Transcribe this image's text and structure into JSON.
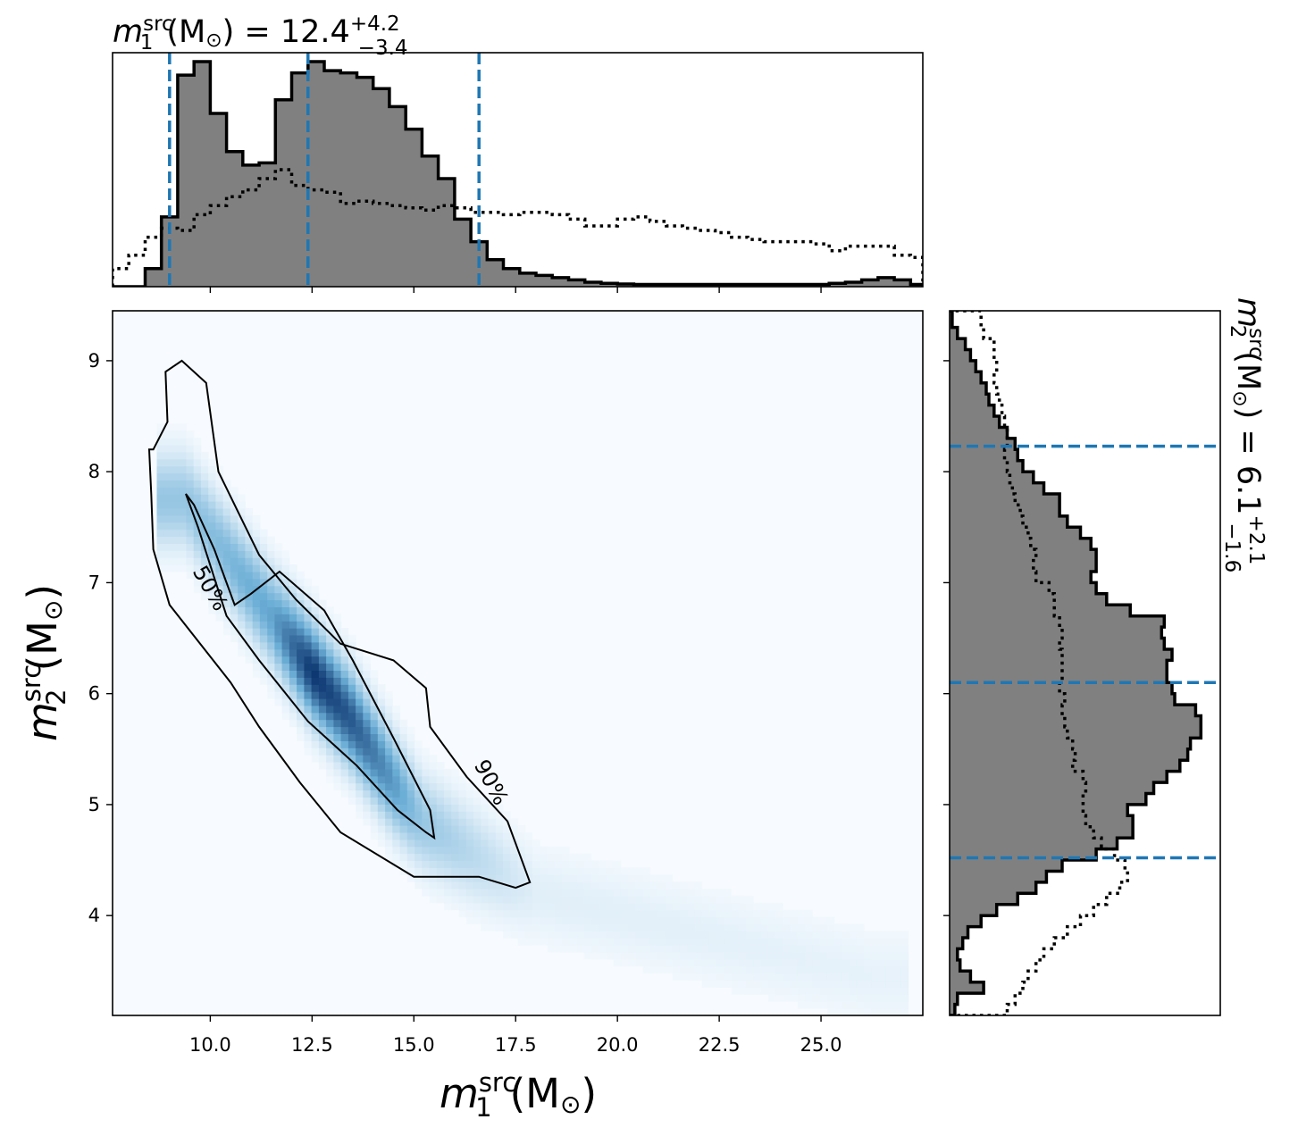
{
  "chart_data": [
    {
      "type": "heatmap",
      "panel": "joint-posterior",
      "xlabel": "m_1^src (M_⊙)",
      "ylabel": "m_2^src (M_⊙)",
      "xlim": [
        7.6,
        27.5
      ],
      "ylim": [
        3.1,
        9.45
      ],
      "xticks": [
        10.0,
        12.5,
        15.0,
        17.5,
        20.0,
        22.5,
        25.0
      ],
      "xtick_labels": [
        "10.0",
        "12.5",
        "15.0",
        "17.5",
        "20.0",
        "22.5",
        "25.0"
      ],
      "yticks": [
        4,
        5,
        6,
        7,
        8,
        9
      ],
      "ytick_labels": [
        "4",
        "5",
        "6",
        "7",
        "8",
        "9"
      ],
      "colormap": "Blues",
      "density_ridge": [
        {
          "x": 9.4,
          "y": 7.75,
          "w": 0.35
        },
        {
          "x": 11.5,
          "y": 6.7,
          "w": 0.55
        },
        {
          "x": 12.5,
          "y": 6.2,
          "w": 1.0
        },
        {
          "x": 13.5,
          "y": 5.75,
          "w": 0.85
        },
        {
          "x": 14.5,
          "y": 5.2,
          "w": 0.6
        },
        {
          "x": 15.2,
          "y": 4.85,
          "w": 0.35
        },
        {
          "x": 18.0,
          "y": 4.2,
          "w": 0.08
        },
        {
          "x": 26.3,
          "y": 3.45,
          "w": 0.06
        }
      ],
      "contours": [
        {
          "level": "50%",
          "label_at": {
            "x": 10.0,
            "y": 6.95
          },
          "points": [
            [
              9.4,
              7.8
            ],
            [
              9.7,
              7.5
            ],
            [
              10.4,
              6.7
            ],
            [
              11.2,
              6.3
            ],
            [
              12.4,
              5.75
            ],
            [
              13.6,
              5.35
            ],
            [
              14.6,
              4.95
            ],
            [
              15.3,
              4.75
            ],
            [
              15.5,
              4.7
            ],
            [
              15.4,
              4.95
            ],
            [
              14.5,
              5.6
            ],
            [
              13.5,
              6.3
            ],
            [
              12.8,
              6.75
            ],
            [
              11.7,
              7.1
            ],
            [
              11.0,
              6.9
            ],
            [
              10.6,
              6.8
            ],
            [
              10.1,
              7.3
            ],
            [
              9.6,
              7.7
            ]
          ]
        },
        {
          "level": "90%",
          "label_at": {
            "x": 16.9,
            "y": 5.2
          },
          "points": [
            [
              8.6,
              8.2
            ],
            [
              8.95,
              8.45
            ],
            [
              8.9,
              8.9
            ],
            [
              9.3,
              9.0
            ],
            [
              9.9,
              8.8
            ],
            [
              10.2,
              8.0
            ],
            [
              11.2,
              7.25
            ],
            [
              12.1,
              6.85
            ],
            [
              13.2,
              6.45
            ],
            [
              14.5,
              6.3
            ],
            [
              15.3,
              6.05
            ],
            [
              15.4,
              5.7
            ],
            [
              16.3,
              5.25
            ],
            [
              17.3,
              4.85
            ],
            [
              17.6,
              4.55
            ],
            [
              17.85,
              4.3
            ],
            [
              17.5,
              4.25
            ],
            [
              16.6,
              4.35
            ],
            [
              15.0,
              4.35
            ],
            [
              13.2,
              4.75
            ],
            [
              12.2,
              5.2
            ],
            [
              11.2,
              5.7
            ],
            [
              10.5,
              6.1
            ],
            [
              9.0,
              6.8
            ],
            [
              8.6,
              7.3
            ],
            [
              8.55,
              7.8
            ],
            [
              8.5,
              8.2
            ]
          ]
        }
      ]
    },
    {
      "type": "bar",
      "panel": "marginal-m1",
      "title": "m_1^src (M_⊙) = 12.4^{+4.2}_{-3.4}",
      "bin_edges": [
        7.6,
        8.0,
        8.4,
        8.8,
        9.2,
        9.6,
        10.0,
        10.4,
        10.8,
        11.2,
        11.6,
        12.0,
        12.4,
        12.8,
        13.2,
        13.6,
        14.0,
        14.4,
        14.8,
        15.2,
        15.6,
        16.0,
        16.4,
        16.8,
        17.2,
        17.6,
        18.0,
        18.4,
        18.8,
        19.2,
        19.6,
        20.0,
        20.4,
        20.8,
        21.2,
        21.6,
        22.0,
        22.4,
        22.8,
        23.2,
        23.6,
        24.0,
        24.4,
        24.8,
        25.2,
        25.6,
        26.0,
        26.4,
        26.8,
        27.2,
        27.5
      ],
      "posterior": [
        0,
        0,
        0.08,
        0.31,
        0.94,
        1.0,
        0.77,
        0.6,
        0.54,
        0.55,
        0.83,
        0.95,
        1.0,
        0.96,
        0.95,
        0.93,
        0.88,
        0.8,
        0.7,
        0.58,
        0.48,
        0.3,
        0.2,
        0.12,
        0.08,
        0.06,
        0.05,
        0.04,
        0.03,
        0.02,
        0.015,
        0.012,
        0.01,
        0.01,
        0.01,
        0.01,
        0.01,
        0.01,
        0.01,
        0.01,
        0.01,
        0.01,
        0.01,
        0.01,
        0.015,
        0.02,
        0.03,
        0.04,
        0.03,
        0.01
      ],
      "prior": [
        0.08,
        0.14,
        0.22,
        0.26,
        0.25,
        0.32,
        0.36,
        0.4,
        0.43,
        0.48,
        0.52,
        0.45,
        0.43,
        0.42,
        0.37,
        0.38,
        0.37,
        0.36,
        0.35,
        0.34,
        0.36,
        0.35,
        0.33,
        0.33,
        0.32,
        0.33,
        0.33,
        0.32,
        0.3,
        0.27,
        0.27,
        0.3,
        0.31,
        0.29,
        0.27,
        0.26,
        0.25,
        0.24,
        0.22,
        0.21,
        0.2,
        0.2,
        0.2,
        0.19,
        0.16,
        0.18,
        0.18,
        0.18,
        0.14,
        0.13
      ],
      "quantiles": [
        9.0,
        12.4,
        16.6
      ]
    },
    {
      "type": "bar",
      "panel": "marginal-m2",
      "orientation": "horizontal",
      "title": "m_2^src (M_⊙) = 6.1^{+2.1}_{-1.6}",
      "bin_edges": [
        3.1,
        3.2,
        3.3,
        3.4,
        3.5,
        3.6,
        3.7,
        3.8,
        3.9,
        4.0,
        4.1,
        4.2,
        4.3,
        4.4,
        4.5,
        4.6,
        4.7,
        4.8,
        4.9,
        5.0,
        5.1,
        5.2,
        5.3,
        5.4,
        5.5,
        5.6,
        5.7,
        5.8,
        5.9,
        6.0,
        6.1,
        6.2,
        6.3,
        6.4,
        6.5,
        6.6,
        6.7,
        6.8,
        6.9,
        7.0,
        7.1,
        7.2,
        7.3,
        7.4,
        7.5,
        7.6,
        7.7,
        7.8,
        7.9,
        8.0,
        8.1,
        8.2,
        8.3,
        8.4,
        8.5,
        8.6,
        8.7,
        8.8,
        8.9,
        9.0,
        9.1,
        9.2,
        9.3,
        9.45
      ],
      "posterior": [
        0.02,
        0.03,
        0.13,
        0.08,
        0.04,
        0.03,
        0.05,
        0.07,
        0.12,
        0.18,
        0.26,
        0.33,
        0.37,
        0.43,
        0.56,
        0.64,
        0.7,
        0.7,
        0.68,
        0.75,
        0.78,
        0.83,
        0.88,
        0.91,
        0.92,
        0.96,
        0.96,
        0.94,
        0.86,
        0.85,
        0.83,
        0.83,
        0.85,
        0.82,
        0.81,
        0.82,
        0.69,
        0.6,
        0.56,
        0.54,
        0.56,
        0.56,
        0.54,
        0.5,
        0.45,
        0.42,
        0.42,
        0.36,
        0.32,
        0.28,
        0.26,
        0.25,
        0.22,
        0.19,
        0.17,
        0.15,
        0.14,
        0.12,
        0.1,
        0.08,
        0.06,
        0.03,
        0.01
      ],
      "prior": [
        0.22,
        0.25,
        0.28,
        0.3,
        0.33,
        0.36,
        0.4,
        0.45,
        0.5,
        0.55,
        0.6,
        0.65,
        0.68,
        0.67,
        0.63,
        0.58,
        0.55,
        0.52,
        0.51,
        0.51,
        0.52,
        0.51,
        0.47,
        0.48,
        0.47,
        0.45,
        0.44,
        0.43,
        0.44,
        0.42,
        0.43,
        0.43,
        0.43,
        0.42,
        0.43,
        0.42,
        0.4,
        0.4,
        0.38,
        0.33,
        0.32,
        0.33,
        0.31,
        0.3,
        0.28,
        0.27,
        0.25,
        0.24,
        0.23,
        0.22,
        0.21,
        0.22,
        0.22,
        0.21,
        0.2,
        0.19,
        0.18,
        0.17,
        0.18,
        0.17,
        0.17,
        0.13,
        0.12
      ],
      "quantiles": [
        4.52,
        6.1,
        8.23
      ]
    }
  ],
  "colors": {
    "posterior_fill": "#808080",
    "posterior_edge": "#000000",
    "quantile_line": "#1f77b4",
    "contour": "#000000",
    "cmap_low": "#f7fbff",
    "cmap_high": "#08306b"
  }
}
